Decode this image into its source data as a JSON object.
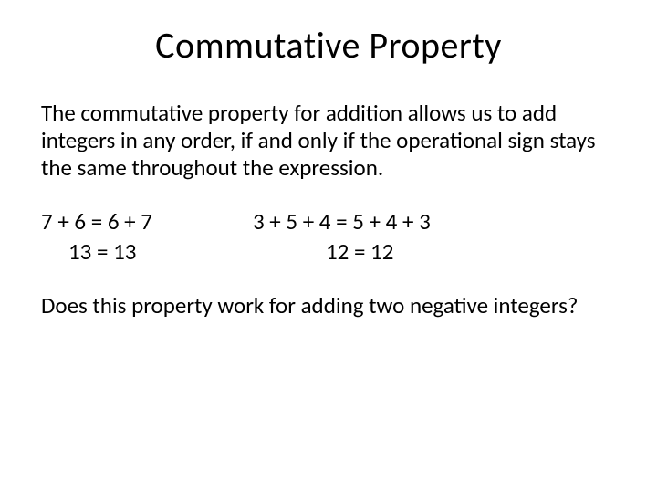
{
  "title": "Commutative Property",
  "paragraph": "The commutative property for addition allows us to add integers in any order, if and only if the operational sign stays the same throughout the expression.",
  "examples": {
    "left": {
      "line1": "7 + 6 = 6 + 7",
      "line2": "13 = 13"
    },
    "right": {
      "line1": "3 + 5 + 4 = 5 + 4 + 3",
      "line2": "12 = 12"
    }
  },
  "question": "Does this property work for adding two negative integers?",
  "styling": {
    "background_color": "#ffffff",
    "text_color": "#000000",
    "title_fontsize": 40,
    "body_fontsize": 25,
    "font_family": "Calibri"
  }
}
